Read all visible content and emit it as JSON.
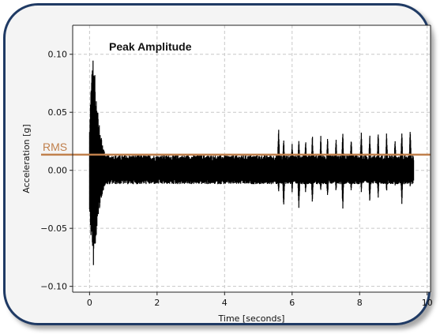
{
  "chart_data": {
    "type": "line",
    "xlabel": "Time [seconds]",
    "ylabel": "Acceleration [g]",
    "xlim": [
      -0.5,
      10.1
    ],
    "ylim": [
      -0.105,
      0.125
    ],
    "x_ticks": [
      0,
      2,
      4,
      6,
      8,
      10
    ],
    "y_ticks": [
      -0.1,
      -0.05,
      0.0,
      0.05,
      0.1
    ],
    "x_tick_labels": [
      "0",
      "2",
      "4",
      "6",
      "8",
      "10"
    ],
    "y_tick_labels": [
      "−0.10",
      "−0.05",
      "0.00",
      "0.05",
      "0.10"
    ],
    "grid": true,
    "annotation": "Peak Amplitude",
    "rms": {
      "label": "RMS",
      "value": 0.0135,
      "color": "#c0804c"
    },
    "signal_color": "#000000",
    "signal_summary": {
      "x_range": [
        0,
        9.6
      ],
      "peak_max": 0.113,
      "peak_min": -0.096,
      "peak_time": 0.1,
      "noise_band": [
        -0.012,
        0.013
      ],
      "spikes": [
        {
          "x": 5.6,
          "max": 0.04,
          "min": -0.02
        },
        {
          "x": 5.75,
          "max": 0.03,
          "min": -0.035
        },
        {
          "x": 6.0,
          "max": 0.025,
          "min": -0.02
        },
        {
          "x": 6.2,
          "max": 0.03,
          "min": -0.035
        },
        {
          "x": 6.4,
          "max": 0.028,
          "min": -0.02
        },
        {
          "x": 6.6,
          "max": 0.032,
          "min": -0.03
        },
        {
          "x": 6.85,
          "max": 0.03,
          "min": -0.02
        },
        {
          "x": 7.05,
          "max": 0.03,
          "min": -0.025
        },
        {
          "x": 7.3,
          "max": 0.03,
          "min": -0.02
        },
        {
          "x": 7.5,
          "max": 0.035,
          "min": -0.035
        },
        {
          "x": 7.75,
          "max": 0.03,
          "min": -0.02
        },
        {
          "x": 8.05,
          "max": 0.035,
          "min": -0.02
        },
        {
          "x": 8.3,
          "max": 0.035,
          "min": -0.03
        },
        {
          "x": 8.55,
          "max": 0.035,
          "min": -0.025
        },
        {
          "x": 8.8,
          "max": 0.035,
          "min": -0.02
        },
        {
          "x": 9.05,
          "max": 0.03,
          "min": -0.015
        },
        {
          "x": 9.25,
          "max": 0.035,
          "min": -0.03
        },
        {
          "x": 9.5,
          "max": 0.04,
          "min": -0.015
        }
      ]
    }
  }
}
